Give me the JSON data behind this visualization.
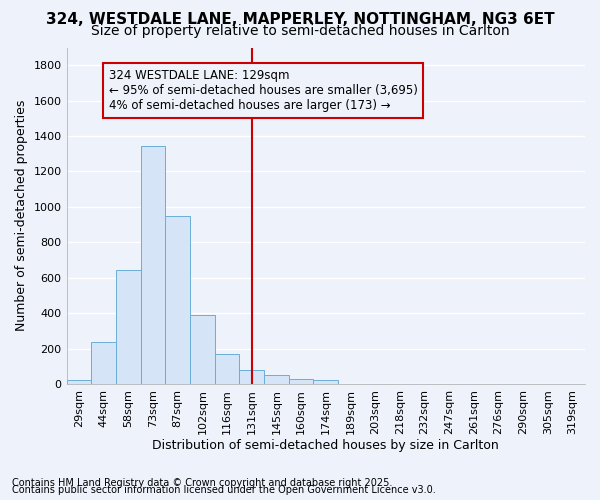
{
  "title": "324, WESTDALE LANE, MAPPERLEY, NOTTINGHAM, NG3 6ET",
  "subtitle": "Size of property relative to semi-detached houses in Carlton",
  "xlabel": "Distribution of semi-detached houses by size in Carlton",
  "ylabel": "Number of semi-detached properties",
  "footnote1": "Contains HM Land Registry data © Crown copyright and database right 2025.",
  "footnote2": "Contains public sector information licensed under the Open Government Licence v3.0.",
  "annotation_line1": "324 WESTDALE LANE: 129sqm",
  "annotation_line2": "← 95% of semi-detached houses are smaller (3,695)",
  "annotation_line3": "4% of semi-detached houses are larger (173) →",
  "categories": [
    "29sqm",
    "44sqm",
    "58sqm",
    "73sqm",
    "87sqm",
    "102sqm",
    "116sqm",
    "131sqm",
    "145sqm",
    "160sqm",
    "174sqm",
    "189sqm",
    "203sqm",
    "218sqm",
    "232sqm",
    "247sqm",
    "261sqm",
    "276sqm",
    "290sqm",
    "305sqm",
    "319sqm"
  ],
  "values": [
    20,
    235,
    645,
    1345,
    950,
    390,
    170,
    80,
    50,
    30,
    20,
    0,
    0,
    0,
    0,
    0,
    0,
    0,
    0,
    0,
    0
  ],
  "bar_color": "#d6e4f7",
  "bar_edge_color": "#6baed6",
  "vline_color": "#cc0000",
  "vline_x_index": 7,
  "annotation_box_color": "#cc0000",
  "ylim": [
    0,
    1900
  ],
  "yticks": [
    0,
    200,
    400,
    600,
    800,
    1000,
    1200,
    1400,
    1600,
    1800
  ],
  "background_color": "#eef2fb",
  "grid_color": "#ffffff",
  "title_fontsize": 11,
  "subtitle_fontsize": 10,
  "axis_label_fontsize": 9,
  "tick_fontsize": 8,
  "annotation_fontsize": 8.5,
  "footnote_fontsize": 7
}
